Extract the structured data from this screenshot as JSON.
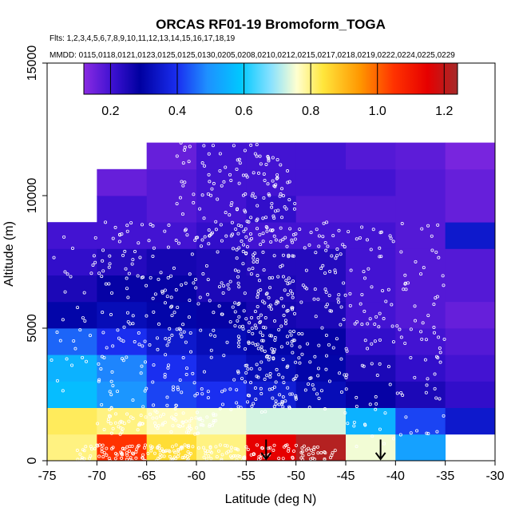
{
  "chart_data": {
    "type": "heatmap",
    "title": "ORCAS RF01-19 Bromoform_TOGA",
    "subtitle_flights": "Flts: 1,2,3,4,5,6,7,8,9,10,11,12,13,14,15,16,17,18,19",
    "subtitle_dates": "MMDD: 0115,0118,0121,0123,0125,0125,0130,0205,0208,0210,0212,0215,0217,0218,0219,0222,0224,0225,0229",
    "xlabel": "Latitude (deg N)",
    "ylabel": "Altitude (m)",
    "xlim": [
      -75,
      -30
    ],
    "ylim": [
      0,
      15000
    ],
    "xticks": [
      -75,
      -70,
      -65,
      -60,
      -55,
      -50,
      -45,
      -40,
      -35,
      -30
    ],
    "yticks": [
      0,
      5000,
      10000,
      15000
    ],
    "colorbar": {
      "range": [
        0.12,
        1.24
      ],
      "ticks": [
        0.2,
        0.4,
        0.6,
        0.8,
        1.0,
        1.2
      ],
      "tick_labels": [
        "0.2",
        "0.4",
        "0.6",
        "0.8",
        "1.0",
        "1.2"
      ]
    },
    "bin_width_lat": 5,
    "bin_height_alt": 1000,
    "lat_bins": [
      -75,
      -70,
      -65,
      -60,
      -55,
      -50,
      -45,
      -40,
      -35
    ],
    "alt_bins": [
      0,
      1000,
      2000,
      3000,
      4000,
      5000,
      6000,
      7000,
      8000,
      9000,
      10000,
      11000
    ],
    "values": [
      [
        0.8,
        1.05,
        0.85,
        0.8,
        1.15,
        1.22,
        0.75,
        0.52,
        null
      ],
      [
        0.82,
        0.8,
        0.77,
        0.75,
        0.73,
        0.73,
        0.55,
        0.42,
        0.35
      ],
      [
        0.57,
        0.5,
        0.42,
        0.4,
        0.36,
        0.32,
        0.28,
        0.25,
        0.22
      ],
      [
        0.55,
        0.48,
        0.4,
        0.35,
        0.32,
        0.3,
        0.25,
        0.22,
        0.2
      ],
      [
        0.45,
        0.4,
        0.35,
        0.32,
        0.3,
        0.28,
        0.22,
        0.2,
        0.18
      ],
      [
        0.3,
        0.32,
        0.3,
        0.28,
        0.26,
        0.25,
        0.2,
        0.18,
        0.16
      ],
      [
        0.25,
        0.28,
        0.28,
        0.25,
        0.25,
        0.24,
        0.2,
        0.18,
        0.18
      ],
      [
        0.22,
        0.24,
        0.26,
        0.25,
        0.24,
        0.24,
        0.2,
        0.18,
        0.18
      ],
      [
        0.2,
        0.2,
        0.2,
        0.22,
        0.2,
        0.2,
        0.2,
        0.18,
        0.35
      ],
      [
        null,
        0.2,
        0.18,
        0.2,
        0.22,
        0.18,
        0.18,
        0.18,
        0.16
      ],
      [
        null,
        0.16,
        0.18,
        0.2,
        0.2,
        0.2,
        0.2,
        0.18,
        0.16
      ],
      [
        null,
        null,
        0.16,
        0.2,
        0.2,
        0.2,
        0.18,
        0.17,
        0.14
      ]
    ],
    "markers": [
      {
        "type": "arrow-down",
        "lat": -53.0,
        "alt": 800
      },
      {
        "type": "arrow-down",
        "lat": -41.5,
        "alt": 800
      }
    ],
    "points_style": "white open circles",
    "colors": {
      "point": "#ffffff",
      "arrow": "#000000",
      "axis": "#000000"
    }
  }
}
